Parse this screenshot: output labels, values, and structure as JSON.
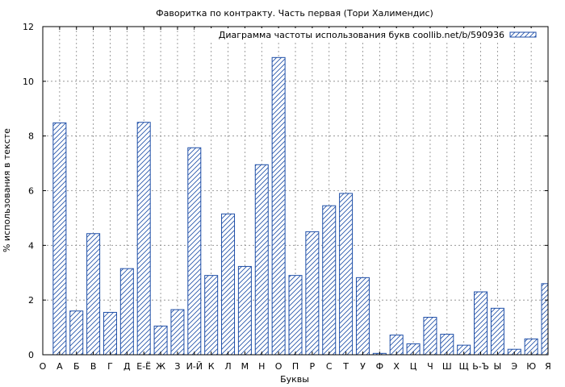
{
  "chart_data": {
    "type": "bar",
    "title": "Фаворитка по контракту. Часть первая (Тори Халимендис)",
    "xlabel": "Буквы",
    "ylabel": "% использования в тексте",
    "legend": {
      "label": "Диаграмма частоты использования букв coollib.net/b/590936",
      "placement": "top-right"
    },
    "categories": [
      "О",
      "А",
      "Б",
      "В",
      "Г",
      "Д",
      "Е-Ё",
      "Ж",
      "З",
      "И-Й",
      "К",
      "Л",
      "М",
      "Н",
      "О",
      "П",
      "Р",
      "С",
      "Т",
      "У",
      "Ф",
      "Х",
      "Ц",
      "Ч",
      "Ш",
      "Щ",
      "Ь-Ъ",
      "Ы",
      "Э",
      "Ю",
      "Я"
    ],
    "values": [
      null,
      8.48,
      1.6,
      4.43,
      1.55,
      3.15,
      8.5,
      1.05,
      1.65,
      7.57,
      2.9,
      5.15,
      3.23,
      6.95,
      10.87,
      2.9,
      4.5,
      5.45,
      5.9,
      2.82,
      0.05,
      0.72,
      0.4,
      1.37,
      0.75,
      0.35,
      2.3,
      1.7,
      0.2,
      0.58,
      2.6
    ],
    "ylim": [
      0,
      12
    ],
    "yticks": [
      "0",
      "2",
      "4",
      "6",
      "8",
      "10",
      "12"
    ],
    "grid": true,
    "colors": {
      "bar_stroke": "#1f4fa8",
      "grid": "#888888",
      "background": "#ffffff"
    }
  }
}
